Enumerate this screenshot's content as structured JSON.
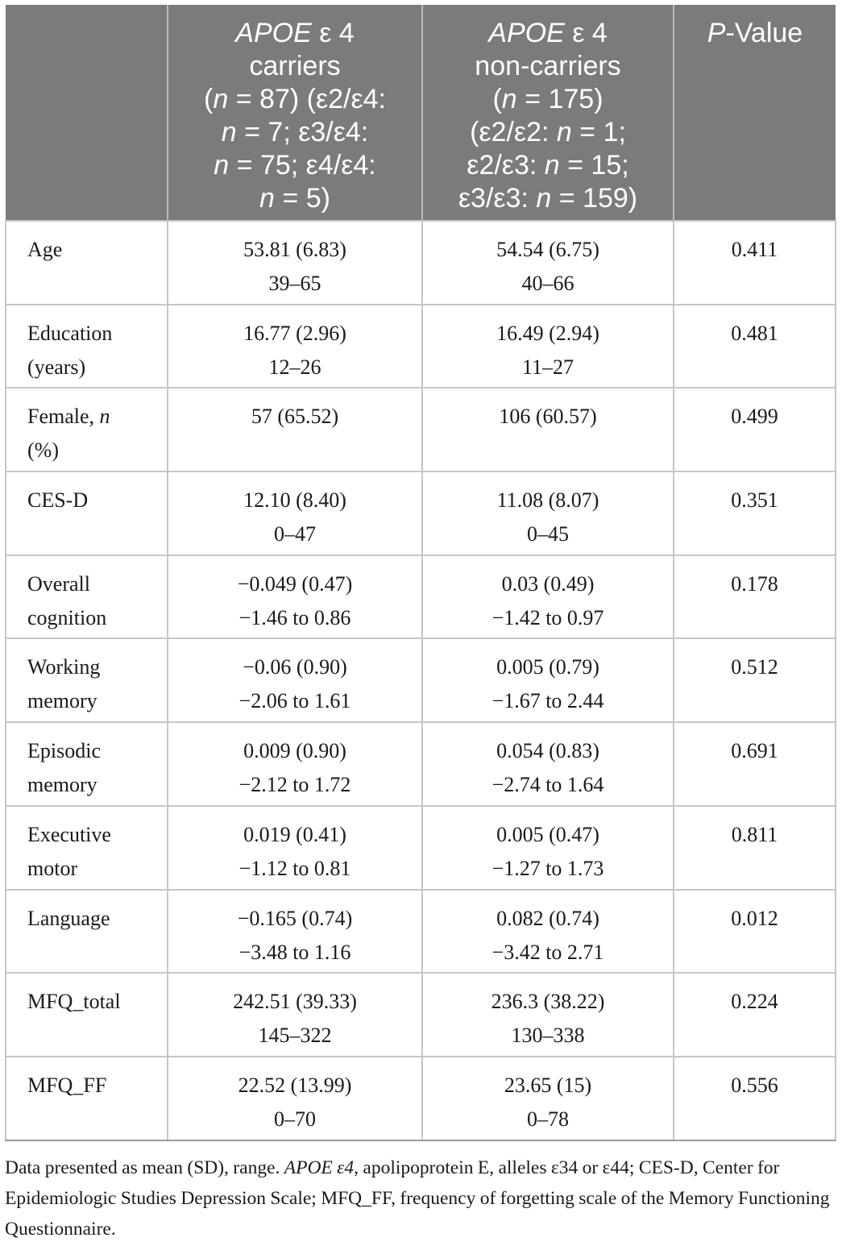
{
  "table": {
    "headers": [
      {
        "lines": [
          ""
        ]
      },
      {
        "lines": [
          "APOE ε 4",
          "carriers",
          "(n = 87) (ε2/ε4:",
          "n = 7; ε3/ε4:",
          "n = 75; ε4/ε4:",
          "n = 5)"
        ]
      },
      {
        "lines": [
          "APOE ε 4",
          "non-carriers",
          "(n = 175)",
          "(ε2/ε2: n = 1;",
          "ε2/ε3: n = 15;",
          "ε3/ε3: n = 159)"
        ]
      },
      {
        "lines": [
          "P-Value"
        ]
      }
    ],
    "rows": [
      {
        "label": [
          "Age"
        ],
        "carriers": [
          "53.81 (6.83)",
          "39–65"
        ],
        "non_carriers": [
          "54.54 (6.75)",
          "40–66"
        ],
        "p_value": "0.411"
      },
      {
        "label": [
          "Education",
          "(years)"
        ],
        "carriers": [
          "16.77 (2.96)",
          "12–26"
        ],
        "non_carriers": [
          "16.49 (2.94)",
          "11–27"
        ],
        "p_value": "0.481"
      },
      {
        "label": [
          "Female, n",
          "(%)"
        ],
        "carriers": [
          "57 (65.52)"
        ],
        "non_carriers": [
          "106 (60.57)"
        ],
        "p_value": "0.499"
      },
      {
        "label": [
          "CES-D"
        ],
        "carriers": [
          "12.10 (8.40)",
          "0–47"
        ],
        "non_carriers": [
          "11.08 (8.07)",
          "0–45"
        ],
        "p_value": "0.351"
      },
      {
        "label": [
          "Overall",
          "cognition"
        ],
        "carriers": [
          "−0.049 (0.47)",
          "−1.46 to 0.86"
        ],
        "non_carriers": [
          "0.03 (0.49)",
          "−1.42 to 0.97"
        ],
        "p_value": "0.178"
      },
      {
        "label": [
          "Working",
          "memory"
        ],
        "carriers": [
          "−0.06 (0.90)",
          "−2.06 to 1.61"
        ],
        "non_carriers": [
          "0.005 (0.79)",
          "−1.67 to 2.44"
        ],
        "p_value": "0.512"
      },
      {
        "label": [
          "Episodic",
          "memory"
        ],
        "carriers": [
          "0.009 (0.90)",
          "−2.12 to 1.72"
        ],
        "non_carriers": [
          "0.054 (0.83)",
          "−2.74 to 1.64"
        ],
        "p_value": "0.691"
      },
      {
        "label": [
          "Executive",
          "motor"
        ],
        "carriers": [
          "0.019 (0.41)",
          "−1.12 to 0.81"
        ],
        "non_carriers": [
          "0.005 (0.47)",
          "−1.27 to 1.73"
        ],
        "p_value": "0.811"
      },
      {
        "label": [
          "Language"
        ],
        "carriers": [
          "−0.165 (0.74)",
          "−3.48 to 1.16"
        ],
        "non_carriers": [
          "0.082 (0.74)",
          "−3.42 to 2.71"
        ],
        "p_value": "0.012"
      },
      {
        "label": [
          "MFQ_total"
        ],
        "carriers": [
          "242.51 (39.33)",
          "145–322"
        ],
        "non_carriers": [
          "236.3 (38.22)",
          "130–338"
        ],
        "p_value": "0.224"
      },
      {
        "label": [
          "MFQ_FF"
        ],
        "carriers": [
          "22.52 (13.99)",
          "0–70"
        ],
        "non_carriers": [
          "23.65 (15)",
          "0–78"
        ],
        "p_value": "0.556"
      }
    ]
  },
  "footnote": "Data presented as mean (SD), range. APOE ε4, apolipoprotein E, alleles ε34 or ε44; CES-D, Center for Epidemiologic Studies Depression Scale; MFQ_FF, frequency of forgetting scale of the Memory Functioning Questionnaire.",
  "colors": {
    "header_background": "#7b7b7b",
    "header_text": "#ffffff",
    "grid_line": "#c6c6c6",
    "body_text": "#1a1a1a"
  }
}
